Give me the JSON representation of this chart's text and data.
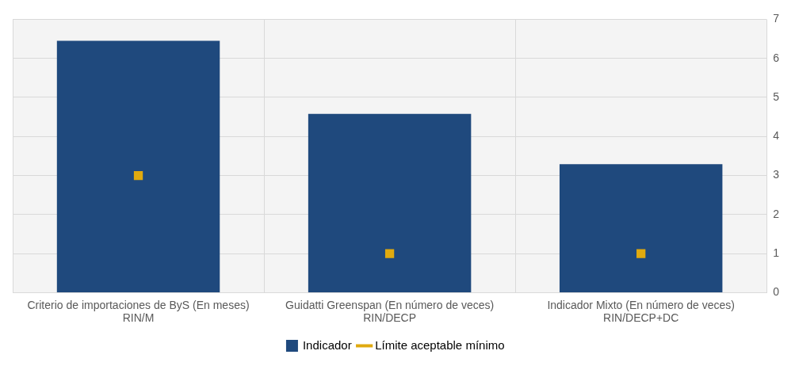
{
  "chart_data": {
    "type": "bar",
    "categories": [
      "Criterio de importaciones de ByS (En meses)\nRIN/M",
      "Guidatti Greenspan (En número de veces)\nRIN/DECP",
      "Indicador Mixto (En número de veces)\nRIN/DECP+DC"
    ],
    "series": [
      {
        "name": "Indicador",
        "color": "#1f497d",
        "values": [
          6.45,
          4.58,
          3.29
        ]
      },
      {
        "name": "Límite aceptable mínimo",
        "type": "scatter",
        "marker": "square",
        "x": [
          "Criterio de importaciones de ByS (En meses)\nRIN/M",
          "Guidatti Greenspan (En número de veces)\nRIN/DECP",
          "Indicador Mixto (En número de veces)\nRIN/DECP+DC"
        ],
        "color": "#e0aa0f",
        "values": [
          3,
          1,
          1
        ]
      }
    ],
    "ylim": [
      0,
      7
    ],
    "yticks": [
      0,
      1,
      2,
      3,
      4,
      5,
      6,
      7
    ],
    "grid": true,
    "legend": "bottom"
  }
}
